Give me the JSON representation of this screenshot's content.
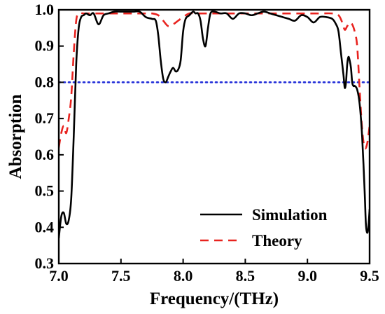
{
  "chart_data": {
    "type": "line",
    "title": "",
    "xlabel": "Frequency/(THz)",
    "ylabel": "Absorption",
    "xlim": [
      7.0,
      9.5
    ],
    "ylim": [
      0.3,
      1.0
    ],
    "xticks": [
      "7.0",
      "7.5",
      "8.0",
      "8.5",
      "9.0",
      "9.5"
    ],
    "yticks": [
      "0.3",
      "0.4",
      "0.5",
      "0.6",
      "0.7",
      "0.8",
      "0.9",
      "1.0"
    ],
    "legend_position": "bottom-right",
    "reference_line": {
      "y": 0.8,
      "style": "dotted",
      "color": "#1f2bd8"
    },
    "series": [
      {
        "name": "Simulation",
        "color": "#000000",
        "dash": "solid",
        "x": [
          7.0,
          7.02,
          7.04,
          7.06,
          7.08,
          7.1,
          7.12,
          7.14,
          7.16,
          7.18,
          7.2,
          7.22,
          7.25,
          7.28,
          7.32,
          7.36,
          7.4,
          7.45,
          7.5,
          7.55,
          7.6,
          7.65,
          7.7,
          7.75,
          7.78,
          7.8,
          7.82,
          7.84,
          7.86,
          7.88,
          7.9,
          7.92,
          7.94,
          7.96,
          7.98,
          8.0,
          8.02,
          8.05,
          8.08,
          8.1,
          8.12,
          8.14,
          8.16,
          8.18,
          8.2,
          8.22,
          8.25,
          8.3,
          8.35,
          8.4,
          8.45,
          8.5,
          8.55,
          8.6,
          8.65,
          8.7,
          8.75,
          8.8,
          8.85,
          8.9,
          8.95,
          9.0,
          9.05,
          9.1,
          9.15,
          9.2,
          9.23,
          9.25,
          9.27,
          9.29,
          9.3,
          9.31,
          9.32,
          9.33,
          9.34,
          9.35,
          9.36,
          9.37,
          9.38,
          9.4,
          9.42,
          9.44,
          9.46,
          9.47,
          9.48,
          9.49,
          9.5
        ],
        "y": [
          0.37,
          0.43,
          0.44,
          0.41,
          0.42,
          0.48,
          0.65,
          0.85,
          0.95,
          0.98,
          0.985,
          0.99,
          0.985,
          0.99,
          0.96,
          0.985,
          0.99,
          0.995,
          0.995,
          0.995,
          0.995,
          0.995,
          0.98,
          0.975,
          0.97,
          0.93,
          0.86,
          0.81,
          0.8,
          0.815,
          0.83,
          0.84,
          0.83,
          0.835,
          0.86,
          0.94,
          0.975,
          0.985,
          0.995,
          0.99,
          0.99,
          0.97,
          0.92,
          0.9,
          0.95,
          0.99,
          0.995,
          0.99,
          0.99,
          0.975,
          0.99,
          0.99,
          0.985,
          0.99,
          0.995,
          0.99,
          0.985,
          0.98,
          0.975,
          0.97,
          0.985,
          0.98,
          0.965,
          0.98,
          0.98,
          0.975,
          0.96,
          0.94,
          0.88,
          0.82,
          0.785,
          0.8,
          0.85,
          0.87,
          0.86,
          0.84,
          0.8,
          0.79,
          0.79,
          0.78,
          0.74,
          0.65,
          0.5,
          0.41,
          0.385,
          0.4,
          0.45
        ]
      },
      {
        "name": "Theory",
        "color": "#e8231f",
        "dash": "dashed",
        "x": [
          7.0,
          7.02,
          7.04,
          7.06,
          7.08,
          7.1,
          7.12,
          7.14,
          7.16,
          7.2,
          7.3,
          7.4,
          7.5,
          7.6,
          7.7,
          7.75,
          7.8,
          7.84,
          7.88,
          7.92,
          7.96,
          8.0,
          8.05,
          8.1,
          8.2,
          8.3,
          8.4,
          8.5,
          8.6,
          8.7,
          8.8,
          8.9,
          9.0,
          9.1,
          9.2,
          9.25,
          9.28,
          9.3,
          9.32,
          9.34,
          9.36,
          9.38,
          9.4,
          9.42,
          9.44,
          9.46,
          9.48,
          9.5
        ],
        "y": [
          0.62,
          0.66,
          0.68,
          0.66,
          0.7,
          0.76,
          0.88,
          0.97,
          0.99,
          0.99,
          0.99,
          0.99,
          0.99,
          0.99,
          0.99,
          0.99,
          0.985,
          0.97,
          0.955,
          0.96,
          0.97,
          0.98,
          0.99,
          0.99,
          0.99,
          0.99,
          0.99,
          0.99,
          0.99,
          0.99,
          0.99,
          0.99,
          0.99,
          0.99,
          0.99,
          0.985,
          0.965,
          0.945,
          0.955,
          0.965,
          0.96,
          0.94,
          0.9,
          0.78,
          0.67,
          0.62,
          0.63,
          0.68
        ]
      }
    ]
  }
}
